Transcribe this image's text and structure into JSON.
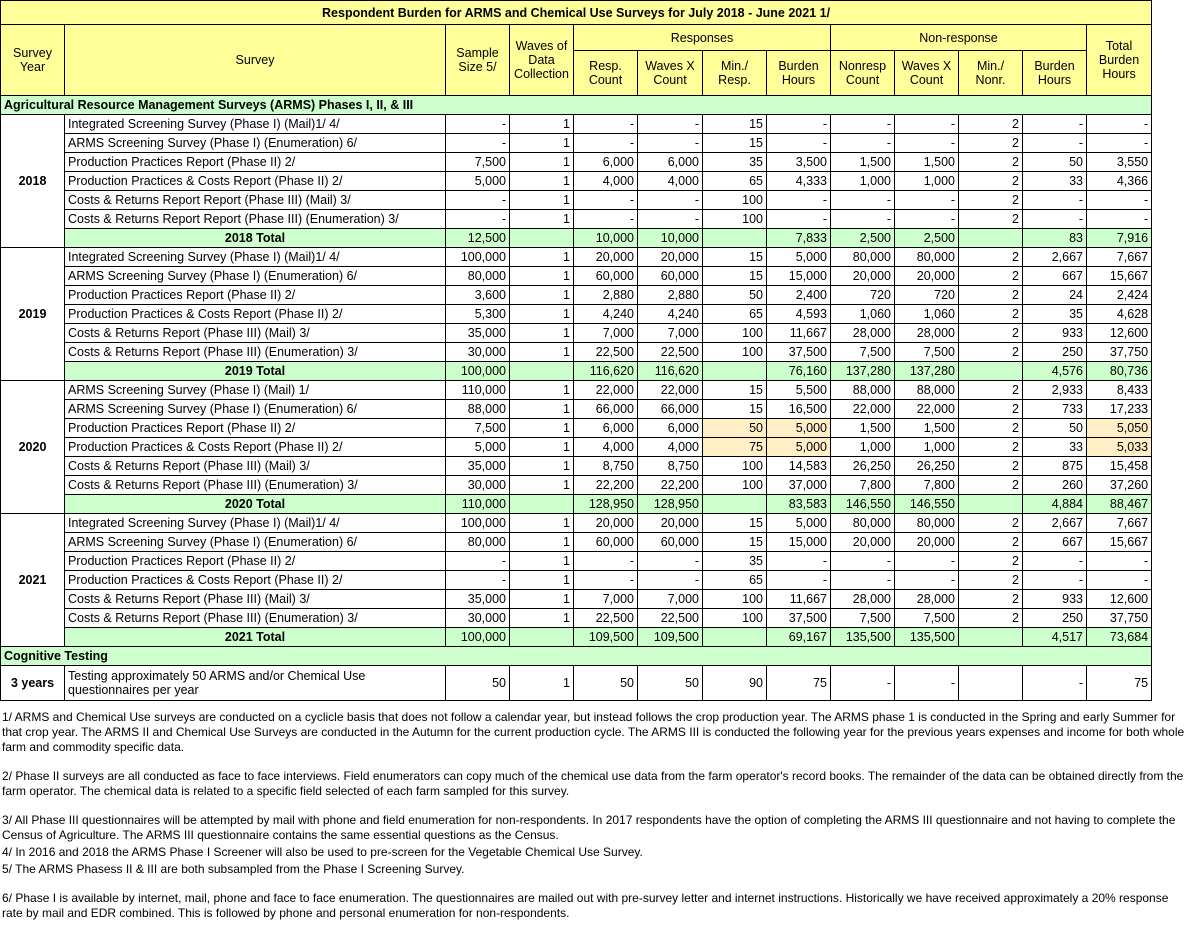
{
  "title": "Respondent Burden for ARMS and Chemical Use Surveys for July 2018 - June 2021 1/",
  "colors": {
    "header": "#ffff99",
    "section_total": "#ccffcc",
    "highlight": "#ffeec6"
  },
  "headers": {
    "survey_year": "Survey Year",
    "survey": "Survey",
    "sample_size": "Sample Size 5/",
    "waves": "Waves of Data Collection",
    "responses": "Responses",
    "non_response": "Non-response",
    "total_burden": "Total Burden Hours",
    "resp_sub": [
      "Resp. Count",
      "Waves X Count",
      "Min./ Resp.",
      "Burden Hours"
    ],
    "nonresp_sub": [
      "Nonresp Count",
      "Waves X Count",
      "Min./ Nonr.",
      "Burden Hours"
    ]
  },
  "sections": [
    {
      "title": "Agricultural Resource Management Surveys (ARMS) Phases I, II, & III",
      "years": [
        {
          "year": "2018",
          "rows": [
            {
              "survey": "Integrated Screening Survey (Phase I) (Mail)1/   4/",
              "values": [
                "-",
                "1",
                "-",
                "-",
                "15",
                "-",
                "-",
                "-",
                "2",
                "-",
                "-"
              ]
            },
            {
              "survey": "ARMS Screening Survey (Phase I) (Enumeration) 6/",
              "values": [
                "-",
                "1",
                "-",
                "-",
                "15",
                "-",
                "-",
                "-",
                "2",
                "-",
                "-"
              ]
            },
            {
              "survey": "Production Practices Report (Phase II) 2/",
              "values": [
                "7,500",
                "1",
                "6,000",
                "6,000",
                "35",
                "3,500",
                "1,500",
                "1,500",
                "2",
                "50",
                "3,550"
              ]
            },
            {
              "survey": "Production Practices & Costs Report (Phase II) 2/",
              "values": [
                "5,000",
                "1",
                "4,000",
                "4,000",
                "65",
                "4,333",
                "1,000",
                "1,000",
                "2",
                "33",
                "4,366"
              ]
            },
            {
              "survey": "Costs & Returns Report Report (Phase III) (Mail) 3/",
              "values": [
                "-",
                "1",
                "-",
                "-",
                "100",
                "-",
                "-",
                "-",
                "2",
                "-",
                "-"
              ]
            },
            {
              "survey": "Costs & Returns Report Report (Phase III) (Enumeration) 3/",
              "values": [
                "-",
                "1",
                "-",
                "-",
                "100",
                "-",
                "-",
                "-",
                "2",
                "-",
                "-"
              ]
            }
          ],
          "total": {
            "label": "2018 Total",
            "values": [
              "12,500",
              "",
              "10,000",
              "10,000",
              "",
              "7,833",
              "2,500",
              "2,500",
              "",
              "83",
              "7,916"
            ]
          }
        },
        {
          "year": "2019",
          "rows": [
            {
              "survey": "Integrated Screening Survey (Phase I) (Mail)1/   4/",
              "values": [
                "100,000",
                "1",
                "20,000",
                "20,000",
                "15",
                "5,000",
                "80,000",
                "80,000",
                "2",
                "2,667",
                "7,667"
              ]
            },
            {
              "survey": "ARMS Screening Survey (Phase I) (Enumeration) 6/",
              "values": [
                "80,000",
                "1",
                "60,000",
                "60,000",
                "15",
                "15,000",
                "20,000",
                "20,000",
                "2",
                "667",
                "15,667"
              ]
            },
            {
              "survey": "Production Practices Report (Phase II) 2/",
              "values": [
                "3,600",
                "1",
                "2,880",
                "2,880",
                "50",
                "2,400",
                "720",
                "720",
                "2",
                "24",
                "2,424"
              ]
            },
            {
              "survey": "Production Practices & Costs Report (Phase II) 2/",
              "values": [
                "5,300",
                "1",
                "4,240",
                "4,240",
                "65",
                "4,593",
                "1,060",
                "1,060",
                "2",
                "35",
                "4,628"
              ]
            },
            {
              "survey": "Costs & Returns Report (Phase III) (Mail) 3/",
              "values": [
                "35,000",
                "1",
                "7,000",
                "7,000",
                "100",
                "11,667",
                "28,000",
                "28,000",
                "2",
                "933",
                "12,600"
              ]
            },
            {
              "survey": "Costs & Returns Report (Phase III) (Enumeration) 3/",
              "values": [
                "30,000",
                "1",
                "22,500",
                "22,500",
                "100",
                "37,500",
                "7,500",
                "7,500",
                "2",
                "250",
                "37,750"
              ]
            }
          ],
          "total": {
            "label": "2019 Total",
            "values": [
              "100,000",
              "",
              "116,620",
              "116,620",
              "",
              "76,160",
              "137,280",
              "137,280",
              "",
              "4,576",
              "80,736"
            ]
          }
        },
        {
          "year": "2020",
          "rows": [
            {
              "survey": "ARMS Screening Survey (Phase I) (Mail) 1/",
              "values": [
                "110,000",
                "1",
                "22,000",
                "22,000",
                "15",
                "5,500",
                "88,000",
                "88,000",
                "2",
                "2,933",
                "8,433"
              ]
            },
            {
              "survey": "ARMS Screening Survey (Phase I) (Enumeration) 6/",
              "values": [
                "88,000",
                "1",
                "66,000",
                "66,000",
                "15",
                "16,500",
                "22,000",
                "22,000",
                "2",
                "733",
                "17,233"
              ]
            },
            {
              "survey": "Production Practices Report (Phase II) 2/",
              "values": [
                "7,500",
                "1",
                "6,000",
                "6,000",
                "50",
                "5,000",
                "1,500",
                "1,500",
                "2",
                "50",
                "5,050"
              ],
              "highlighted": [
                4,
                5,
                10
              ]
            },
            {
              "survey": "Production Practices & Costs Report (Phase II) 2/",
              "values": [
                "5,000",
                "1",
                "4,000",
                "4,000",
                "75",
                "5,000",
                "1,000",
                "1,000",
                "2",
                "33",
                "5,033"
              ],
              "highlighted": [
                4,
                5,
                10
              ]
            },
            {
              "survey": "Costs & Returns Report (Phase III) (Mail) 3/",
              "values": [
                "35,000",
                "1",
                "8,750",
                "8,750",
                "100",
                "14,583",
                "26,250",
                "26,250",
                "2",
                "875",
                "15,458"
              ]
            },
            {
              "survey": "Costs & Returns Report (Phase III) (Enumeration) 3/",
              "values": [
                "30,000",
                "1",
                "22,200",
                "22,200",
                "100",
                "37,000",
                "7,800",
                "7,800",
                "2",
                "260",
                "37,260"
              ]
            }
          ],
          "total": {
            "label": "2020 Total",
            "values": [
              "110,000",
              "",
              "128,950",
              "128,950",
              "",
              "83,583",
              "146,550",
              "146,550",
              "",
              "4,884",
              "88,467"
            ]
          }
        },
        {
          "year": "2021",
          "rows": [
            {
              "survey": "Integrated Screening Survey (Phase I) (Mail)1/   4/",
              "values": [
                "100,000",
                "1",
                "20,000",
                "20,000",
                "15",
                "5,000",
                "80,000",
                "80,000",
                "2",
                "2,667",
                "7,667"
              ]
            },
            {
              "survey": "ARMS Screening Survey (Phase I) (Enumeration) 6/",
              "values": [
                "80,000",
                "1",
                "60,000",
                "60,000",
                "15",
                "15,000",
                "20,000",
                "20,000",
                "2",
                "667",
                "15,667"
              ]
            },
            {
              "survey": "Production Practices Report (Phase II) 2/",
              "values": [
                "-",
                "1",
                "-",
                "-",
                "35",
                "-",
                "-",
                "-",
                "2",
                "-",
                "-"
              ]
            },
            {
              "survey": "Production Practices & Costs Report (Phase II) 2/",
              "values": [
                "-",
                "1",
                "-",
                "-",
                "65",
                "-",
                "-",
                "-",
                "2",
                "-",
                "-"
              ]
            },
            {
              "survey": "Costs & Returns Report (Phase III) (Mail) 3/",
              "values": [
                "35,000",
                "1",
                "7,000",
                "7,000",
                "100",
                "11,667",
                "28,000",
                "28,000",
                "2",
                "933",
                "12,600"
              ]
            },
            {
              "survey": "Costs & Returns Report (Phase III) (Enumeration) 3/",
              "values": [
                "30,000",
                "1",
                "22,500",
                "22,500",
                "100",
                "37,500",
                "7,500",
                "7,500",
                "2",
                "250",
                "37,750"
              ]
            }
          ],
          "total": {
            "label": "2021 Total",
            "values": [
              "100,000",
              "",
              "109,500",
              "109,500",
              "",
              "69,167",
              "135,500",
              "135,500",
              "",
              "4,517",
              "73,684"
            ]
          }
        }
      ]
    }
  ],
  "cognitive": {
    "title": "Cognitive Testing",
    "year": "3 years",
    "survey": "Testing approximately 50 ARMS and/or Chemical Use questionnaires per year",
    "values": [
      "50",
      "1",
      "50",
      "50",
      "90",
      "75",
      "-",
      "-",
      "",
      "-",
      "75"
    ]
  },
  "footnotes": [
    "1/ ARMS and Chemical Use surveys are conducted on a cyclicle basis that does not follow a calendar year, but instead follows the crop production year.  The ARMS phase 1 is conducted in the Spring and early Summer for that crop year.  The ARMS II and Chemical Use Surveys are conducted in the Autumn for the current production cycle. The ARMS III is conducted the following year for the previous years expenses and income for  both whole farm and commodity specific data.",
    "2/ Phase II surveys are all conducted as face to face interviews. Field enumerators can copy much of the chemical use data from the farm operator's record books. The remainder of the data can be obtained directly from the farm operator.  The chemical data is related to a specific field selected of each farm sampled for this survey.",
    "3/ All Phase III questionnaires will be attempted by mail with phone and field enumeration for non-respondents.  In 2017 respondents have the option of completing the ARMS III questionnaire and not having to complete the Census of Agriculture. The ARMS III questionnaire contains the same essential questions as the Census.",
    "4/ In 2016 and 2018 the ARMS Phase I Screener will also be used to pre-screen for the Vegetable Chemical Use Survey.",
    "5/ The ARMS Phasess II & III are both subsampled from the Phase I Screening Survey.",
    "6/ Phase I is available by internet, mail, phone and face to face enumeration. The questionnaires are mailed out with pre-survey letter and internet instructions.  Historically we have received approximately a 20% response rate by mail and EDR combined.  This is followed by phone and personal enumeration for non-respondents."
  ]
}
